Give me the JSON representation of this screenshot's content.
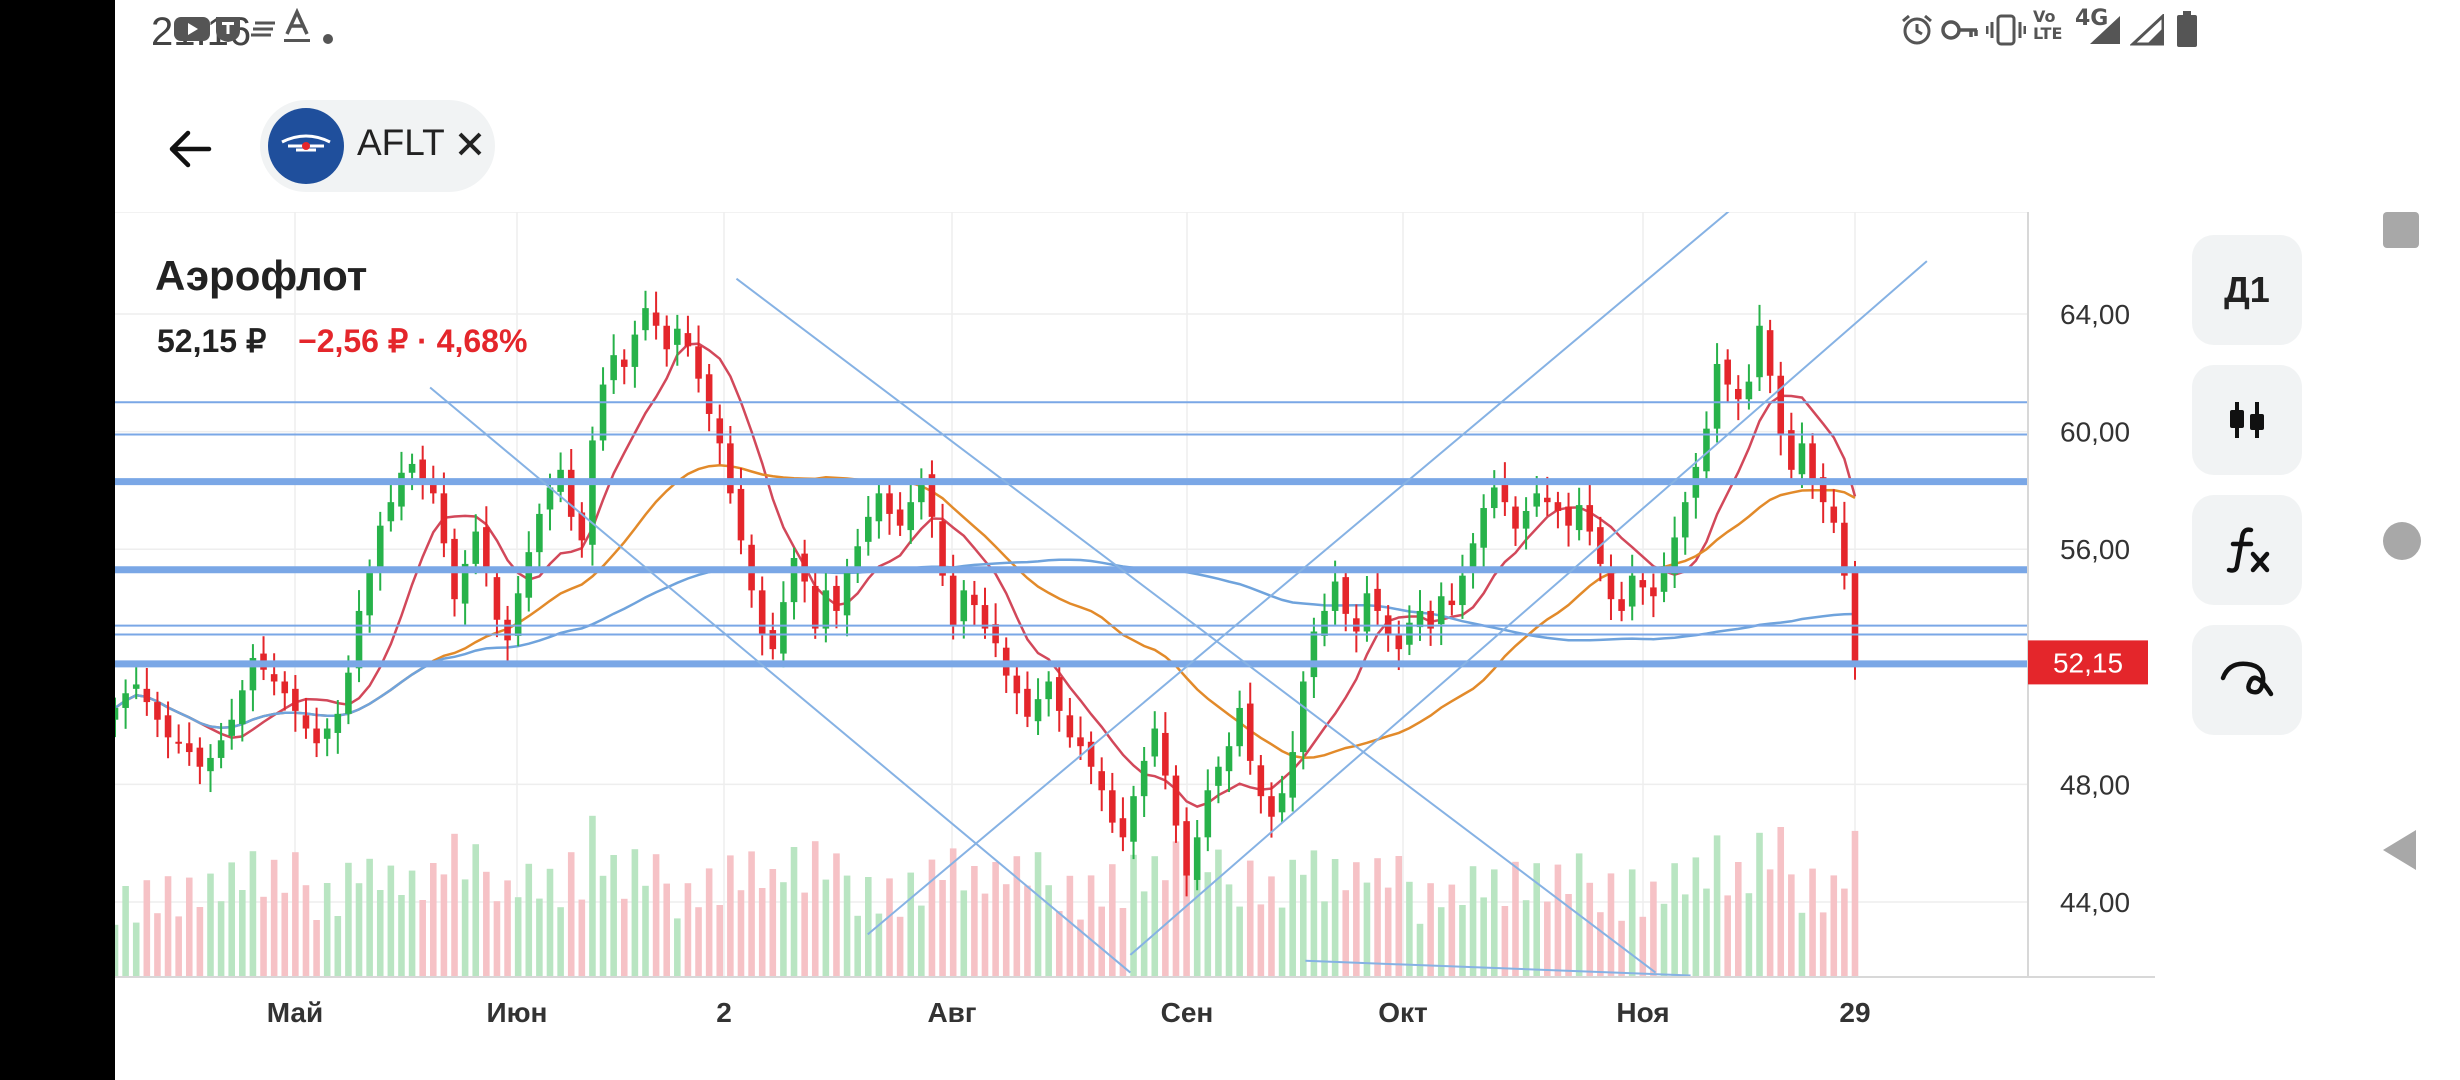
{
  "status_bar": {
    "time": "21:16",
    "left_icons": [
      "youtube-icon",
      "tinkoff-icon",
      "lines-icon",
      "text-a-icon",
      "dot-icon"
    ],
    "right_icons": [
      "alarm-icon",
      "key-icon",
      "vibrate-icon",
      "volte-icon",
      "signal-4g-icon",
      "signal-icon",
      "battery-icon"
    ],
    "network_label": "4G"
  },
  "header": {
    "ticker": "AFLT"
  },
  "stock": {
    "name": "Аэрофлот",
    "price": "52,15 ₽",
    "change": "−2,56 ₽ · 4,68%"
  },
  "side_buttons": {
    "period": "Д1",
    "candles_icon": "candlestick-icon",
    "indicators_icon": "function-icon",
    "drawing_icon": "drawing-curve-icon"
  },
  "colors": {
    "up": "#27b24a",
    "down": "#e4262b",
    "ma_fast": "#d2485a",
    "ma_slow": "#e28a2a",
    "ma_long": "#6fa3dc",
    "level": "#7aa7e6",
    "trend": "#86b2e4",
    "price_tag": "#e4262b"
  },
  "chart_data": {
    "type": "candlestick",
    "title": "Аэрофлот",
    "y_axis": {
      "range": [
        41.5,
        67
      ],
      "ticks": [
        "64,00",
        "60,00",
        "56,00",
        "48,00",
        "44,00"
      ],
      "tick_values": [
        64,
        60,
        56,
        48,
        44
      ]
    },
    "x_axis": {
      "labels": [
        "Май",
        "Июн",
        "2",
        "Авг",
        "Сен",
        "Окт",
        "Ноя",
        "29"
      ]
    },
    "last_price_label": "52,15",
    "last_price": 52.15,
    "horizontal_levels": [
      {
        "value": 61.0,
        "weight": "thin"
      },
      {
        "value": 59.9,
        "weight": "thin"
      },
      {
        "value": 58.3,
        "weight": "thick"
      },
      {
        "value": 55.3,
        "weight": "thick"
      },
      {
        "value": 53.4,
        "weight": "thin"
      },
      {
        "value": 53.1,
        "weight": "thin"
      },
      {
        "value": 52.1,
        "weight": "thick"
      }
    ],
    "closes": [
      50.6,
      51.1,
      51.4,
      50.8,
      50.2,
      49.6,
      49.4,
      49.1,
      48.6,
      48.9,
      49.5,
      50.2,
      51.2,
      52.3,
      51.9,
      51.5,
      51.1,
      50.5,
      49.9,
      49.4,
      49.9,
      50.4,
      51.8,
      53.9,
      55.3,
      56.8,
      57.6,
      58.6,
      58.9,
      58.4,
      57.9,
      56.2,
      54.3,
      55.5,
      56.6,
      55.2,
      53.6,
      52.9,
      54.5,
      55.9,
      57.2,
      58.1,
      58.7,
      57.1,
      56.3,
      59.7,
      61.6,
      62.6,
      62.2,
      63.3,
      64.2,
      63.6,
      62.8,
      63.5,
      62.9,
      61.8,
      60.6,
      59.6,
      57.9,
      56.3,
      54.6,
      53.1,
      52.6,
      54.2,
      55.7,
      54.9,
      53.3,
      54.6,
      53.9,
      55.2,
      56.1,
      57.1,
      57.9,
      57.2,
      56.8,
      57.6,
      58.4,
      57.1,
      55.1,
      53.4,
      54.6,
      54.1,
      53.3,
      52.8,
      51.7,
      51.1,
      50.3,
      50.9,
      51.5,
      50.5,
      49.6,
      49.3,
      48.6,
      47.8,
      46.7,
      46.2,
      47.6,
      48.8,
      49.9,
      48.3,
      46.6,
      44.9,
      46.2,
      47.8,
      48.6,
      49.3,
      50.6,
      48.8,
      47.6,
      46.9,
      47.7,
      49.1,
      51.5,
      53.2,
      53.9,
      54.9,
      53.8,
      53.2,
      54.5,
      53.9,
      53.1,
      52.6,
      53.5,
      53.9,
      53.3,
      54.4,
      54.1,
      55.1,
      56.2,
      57.4,
      58.1,
      57.6,
      56.7,
      57.3,
      57.9,
      57.6,
      57.3,
      56.8,
      57.5,
      56.6,
      55.5,
      54.3,
      53.9,
      55.1,
      54.7,
      54.4,
      55.3,
      56.4,
      57.6,
      58.8,
      60.1,
      62.3,
      61.6,
      61.1,
      61.7,
      63.6,
      61.9,
      59.9,
      58.7,
      59.6,
      58.3,
      57.6,
      56.9,
      55.1,
      52.15
    ]
  }
}
